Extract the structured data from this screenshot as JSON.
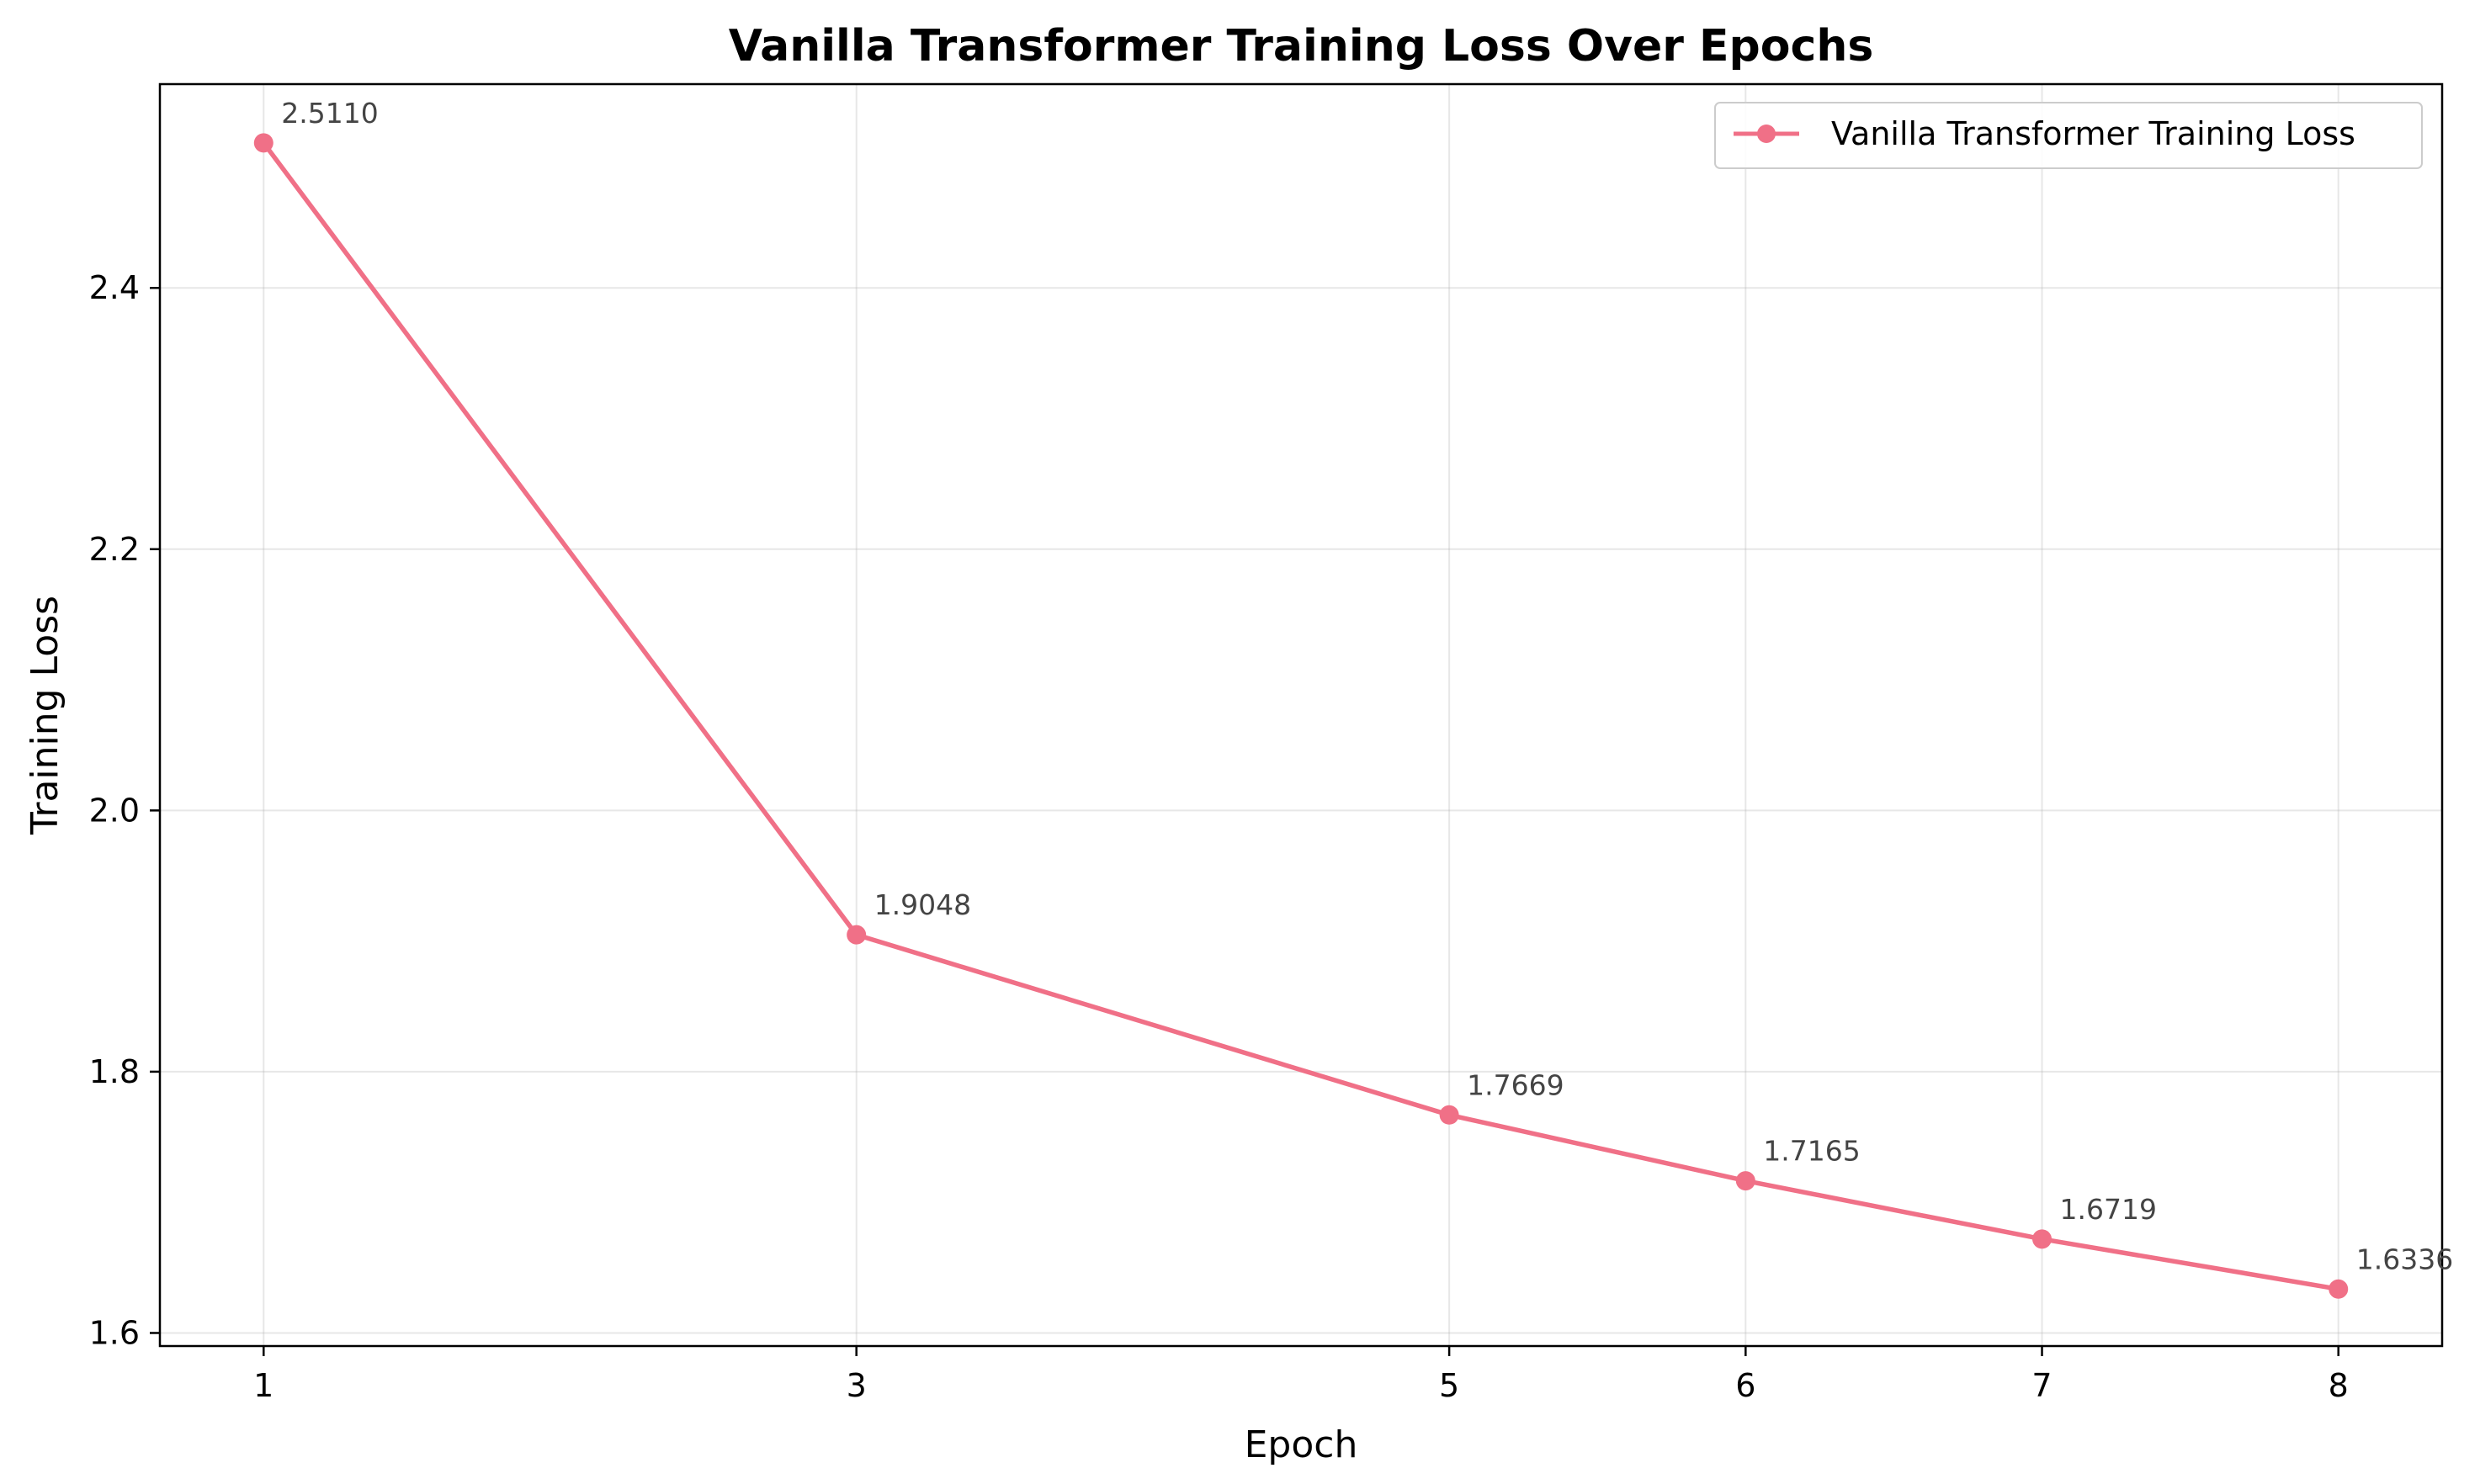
{
  "chart_data": {
    "type": "line",
    "title": "Vanilla Transformer Training Loss Over Epochs",
    "xlabel": "Epoch",
    "ylabel": "Training Loss",
    "x": [
      1,
      3,
      5,
      6,
      7,
      8
    ],
    "x_ticks": [
      "1",
      "3",
      "5",
      "6",
      "7",
      "8"
    ],
    "y_ticks": [
      "1.6",
      "1.8",
      "2.0",
      "2.2",
      "2.4"
    ],
    "ylim": [
      1.59,
      2.556
    ],
    "xlim": [
      0.65,
      8.35
    ],
    "grid": true,
    "legend_position": "top-right",
    "series": [
      {
        "name": "Vanilla Transformer Training Loss",
        "values": [
          2.511,
          1.9048,
          1.7669,
          1.7165,
          1.6719,
          1.6336
        ],
        "labels": [
          "2.5110",
          "1.9048",
          "1.7669",
          "1.7165",
          "1.6719",
          "1.6336"
        ],
        "color": "#f07087",
        "marker": "circle"
      }
    ]
  }
}
